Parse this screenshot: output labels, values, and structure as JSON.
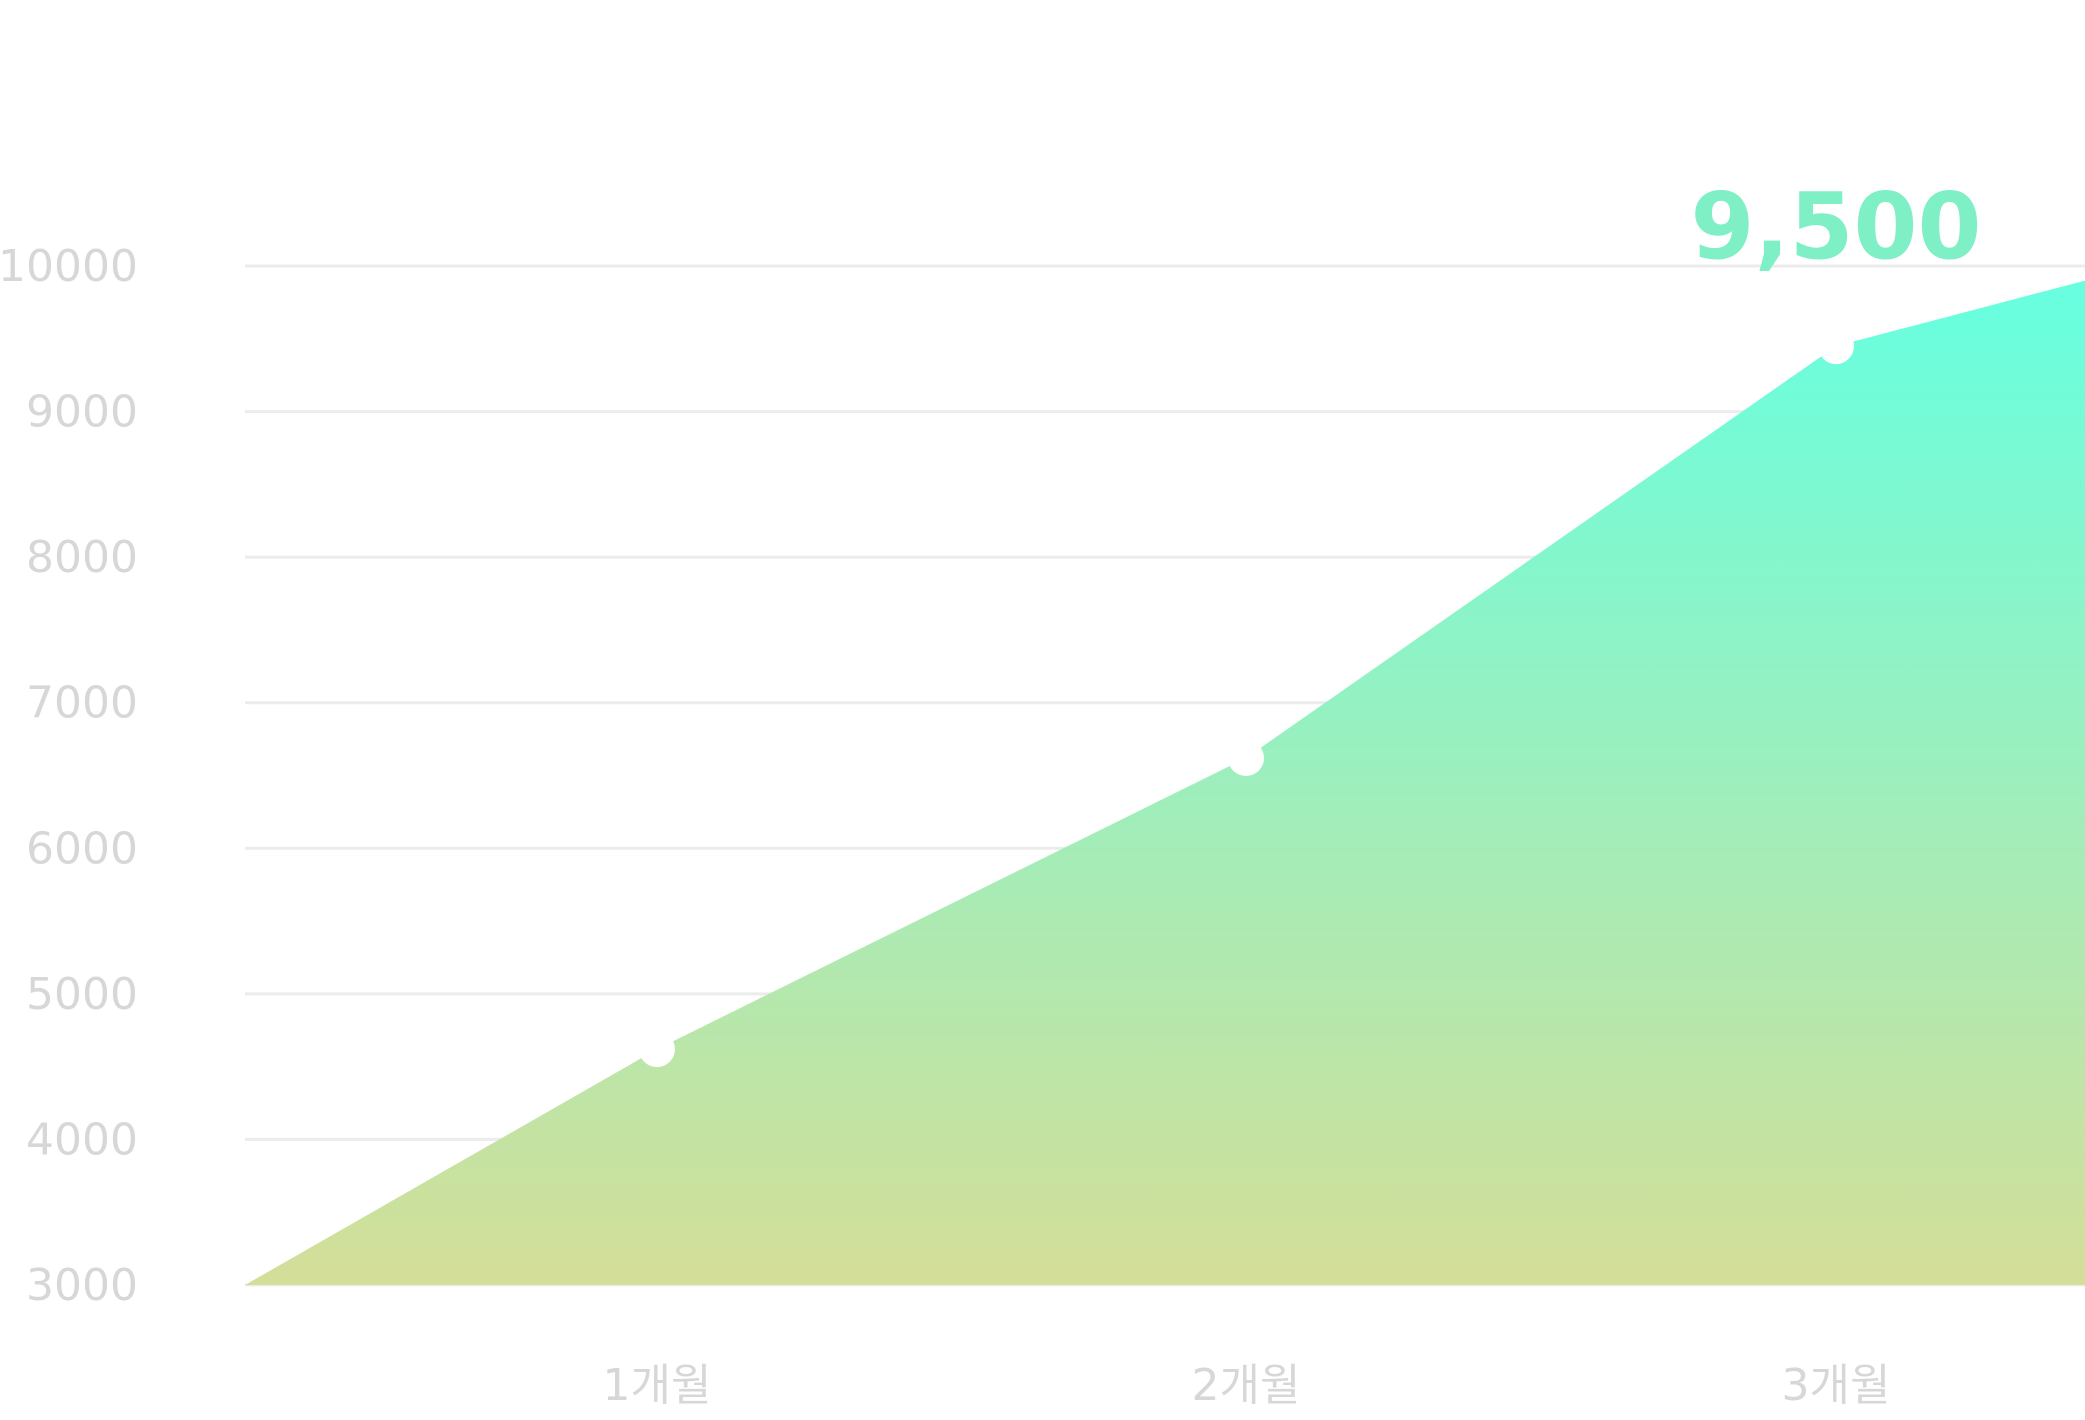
{
  "chart_data": {
    "type": "area",
    "x": [
      0,
      1,
      2,
      3,
      3.42
    ],
    "categories": [
      "1개월",
      "2개월",
      "3개월"
    ],
    "values": [
      3000,
      4620,
      6620,
      9450,
      9900
    ],
    "markers": [
      {
        "category": "1개월",
        "value": 4620
      },
      {
        "category": "2개월",
        "value": 6620
      },
      {
        "category": "3개월",
        "value": 9450
      }
    ],
    "highlight_label": {
      "text": "9,500",
      "category": "3개월"
    },
    "yticks": [
      "10000",
      "9000",
      "8000",
      "7000",
      "6000",
      "5000",
      "4000",
      "3000"
    ],
    "ylim": [
      3000,
      10000
    ],
    "grid": true,
    "legend": "none",
    "colors": {
      "fill_top": "#66ffe0",
      "fill_bottom": "#d4de98",
      "highlight_text": "#7fefc6",
      "grid": "#ececec",
      "tick_text": "#d7d7d7",
      "marker": "#ffffff"
    }
  }
}
